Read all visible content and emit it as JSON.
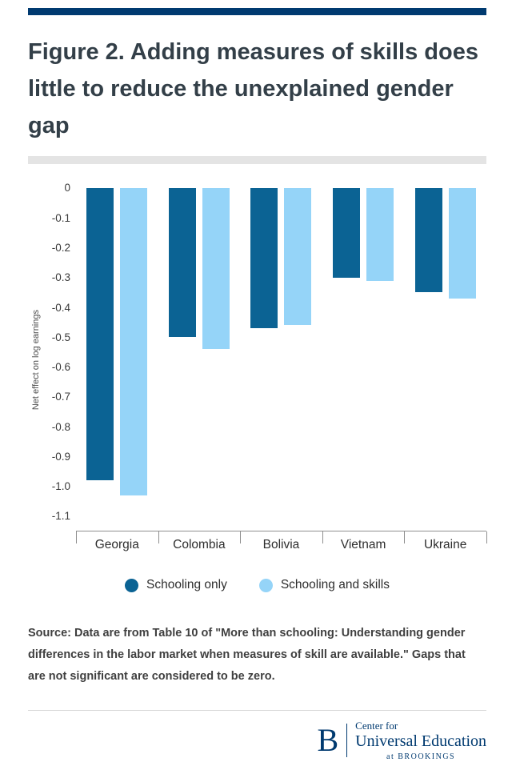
{
  "header": {
    "title": "Figure 2. Adding measures of skills does little to reduce the unexplained gender gap"
  },
  "chart_data": {
    "type": "bar",
    "title": "Figure 2. Adding measures of skills does little to reduce the unexplained gender gap",
    "categories": [
      "Georgia",
      "Colombia",
      "Bolivia",
      "Vietnam",
      "Ukraine"
    ],
    "series": [
      {
        "name": "Schooling only",
        "color": "#0b6394",
        "values": [
          -0.98,
          -0.5,
          -0.47,
          -0.3,
          -0.35
        ]
      },
      {
        "name": "Schooling and skills",
        "color": "#95d4f8",
        "values": [
          -1.03,
          -0.54,
          -0.46,
          -0.31,
          -0.37
        ]
      }
    ],
    "xlabel": "",
    "ylabel": "Net effect on log earnings",
    "ylim": [
      -1.1,
      0
    ],
    "yticks": [
      0,
      -0.1,
      -0.2,
      -0.3,
      -0.4,
      -0.5,
      -0.6,
      -0.7,
      -0.8,
      -0.9,
      -1.0,
      -1.1
    ],
    "ytick_labels": [
      "0",
      "-0.1",
      "-0.2",
      "-0.3",
      "-0.4",
      "-0.5",
      "-0.6",
      "-0.7",
      "-0.8",
      "-0.9",
      "-1.0",
      "-1.1"
    ],
    "grid": false,
    "legend_position": "bottom"
  },
  "source": {
    "text": "Source: Data are from Table 10 of \"More than schooling: Understanding gender differences in the labor market when measures of skill are available.\" Gaps that are not significant are considered to be zero."
  },
  "footer": {
    "logo_letter": "B",
    "line1": "Center for",
    "line2": "Universal Education",
    "line3": "at BROOKINGS"
  },
  "colors": {
    "accent_navy": "#003a70",
    "series_dark_blue": "#0b6394",
    "series_light_blue": "#95d4f8",
    "title_text": "#333f48",
    "divider_gray": "#e4e4e4"
  }
}
